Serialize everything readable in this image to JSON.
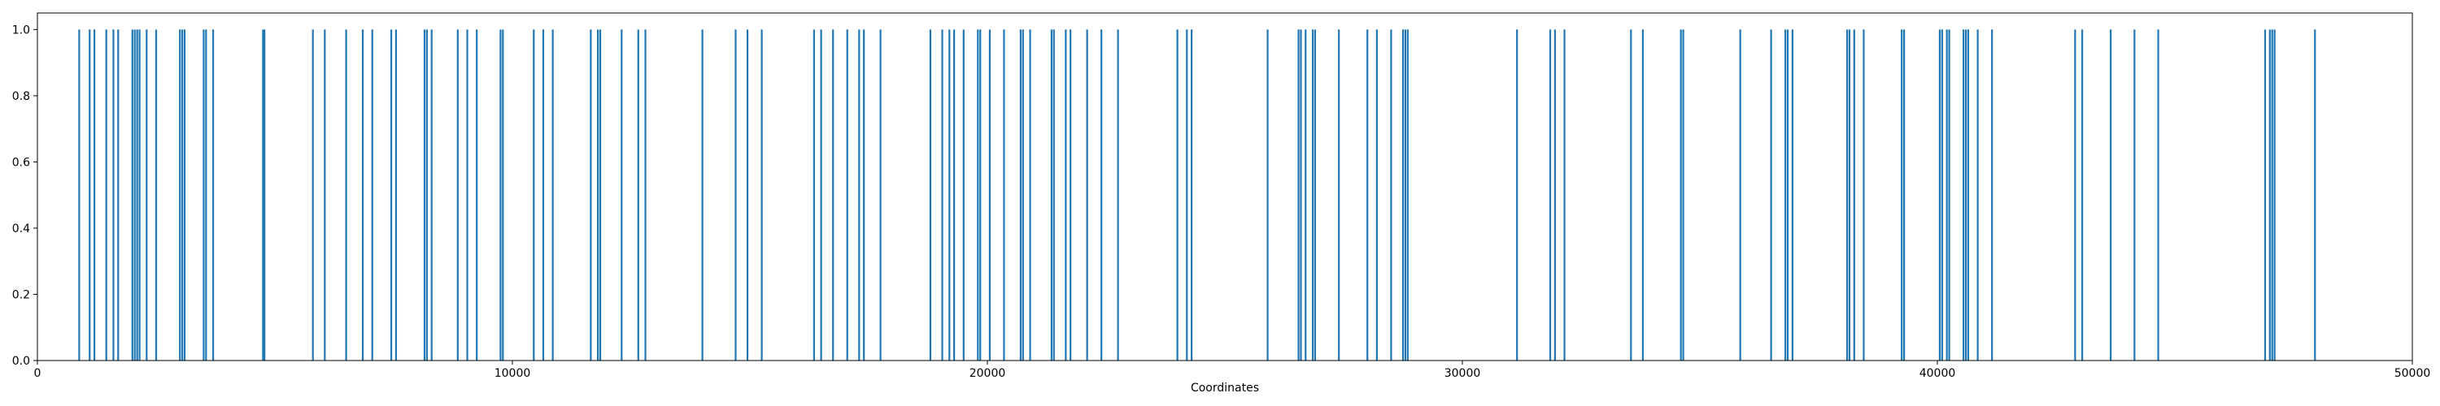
{
  "chart_data": {
    "type": "bar",
    "title": "",
    "xlabel": "Coordinates",
    "ylabel": "",
    "xlim": [
      0,
      50000
    ],
    "ylim": [
      0,
      1.05
    ],
    "x_ticks": [
      0,
      10000,
      20000,
      30000,
      40000,
      50000
    ],
    "x_tick_labels": [
      "0",
      "10000",
      "20000",
      "30000",
      "40000",
      "50000"
    ],
    "y_ticks": [
      0.0,
      0.2,
      0.4,
      0.6,
      0.8,
      1.0
    ],
    "y_tick_labels": [
      "0.0",
      "0.2",
      "0.4",
      "0.6",
      "0.8",
      "1.0"
    ],
    "grid": false,
    "legend": "none",
    "color": "#1f77b4",
    "series": [
      {
        "x": [
          880,
          1100,
          1200,
          1450,
          1600,
          1700,
          2000,
          2050,
          2100,
          2150,
          2300,
          2500,
          3000,
          3050,
          3100,
          3500,
          3550,
          3700,
          4750,
          4780,
          5800,
          6050,
          6500,
          6850,
          7050,
          7450,
          7550,
          8150,
          8200,
          8300,
          8850,
          9050,
          9250,
          9750,
          9800,
          10450,
          10650,
          10850,
          11650,
          11800,
          11850,
          12300,
          12650,
          12800,
          14000,
          14700,
          14950,
          15250,
          16350,
          16500,
          16750,
          17050,
          17300,
          17400,
          17750,
          18800,
          19050,
          19200,
          19300,
          19500,
          19800,
          19850,
          20050,
          20350,
          20700,
          20750,
          20900,
          21350,
          21400,
          21650,
          21750,
          22100,
          22400,
          22750,
          24000,
          24200,
          24300,
          25900,
          26550,
          26600,
          26700,
          26850,
          26900,
          27400,
          28000,
          28200,
          28500,
          28750,
          28800,
          28850,
          31150,
          31850,
          31950,
          32150,
          33550,
          33800,
          34600,
          34650,
          35850,
          36500,
          36800,
          36850,
          36950,
          38100,
          38150,
          38250,
          38450,
          39250,
          39300,
          40050,
          40100,
          40200,
          40250,
          40550,
          40600,
          40650,
          40850,
          41150,
          42900,
          43050,
          43650,
          44150,
          44650,
          46900,
          47000,
          47050,
          47100,
          47950
        ],
        "y": [
          1,
          1,
          1,
          1,
          1,
          1,
          1,
          1,
          1,
          1,
          1,
          1,
          1,
          1,
          1,
          1,
          1,
          1,
          1,
          1,
          1,
          1,
          1,
          1,
          1,
          1,
          1,
          1,
          1,
          1,
          1,
          1,
          1,
          1,
          1,
          1,
          1,
          1,
          1,
          1,
          1,
          1,
          1,
          1,
          1,
          1,
          1,
          1,
          1,
          1,
          1,
          1,
          1,
          1,
          1,
          1,
          1,
          1,
          1,
          1,
          1,
          1,
          1,
          1,
          1,
          1,
          1,
          1,
          1,
          1,
          1,
          1,
          1,
          1,
          1,
          1,
          1,
          1,
          1,
          1,
          1,
          1,
          1,
          1,
          1,
          1,
          1,
          1,
          1,
          1,
          1,
          1,
          1,
          1,
          1,
          1,
          1,
          1,
          1,
          1,
          1,
          1,
          1,
          1,
          1,
          1,
          1,
          1,
          1,
          1,
          1,
          1,
          1,
          1,
          1,
          1,
          1,
          1,
          1,
          1,
          1,
          1,
          1,
          1,
          1,
          1,
          1,
          1
        ]
      }
    ]
  }
}
